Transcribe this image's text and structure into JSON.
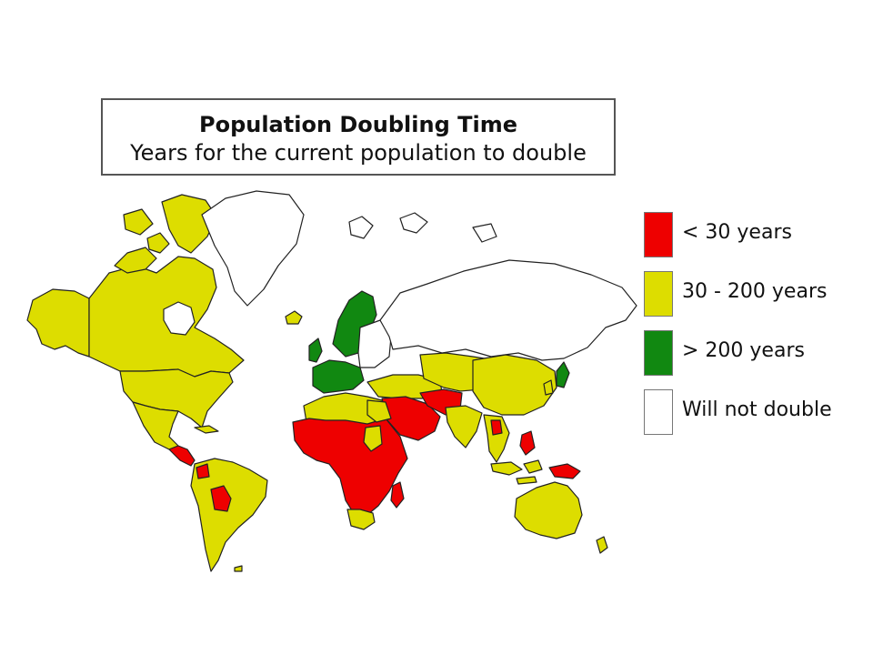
{
  "title": "Population Doubling Time",
  "subtitle": "Years for the current population to double",
  "colors": {
    "red": "#ee0000",
    "yellow": "#dddd00",
    "green": "#118811",
    "white": "#ffffff",
    "outline": "#222222"
  },
  "legend": [
    {
      "label": "< 30 years",
      "color": "#ee0000"
    },
    {
      "label": "30 - 200 years",
      "color": "#dddd00"
    },
    {
      "label": "> 200 years",
      "color": "#118811"
    },
    {
      "label": "Will not double",
      "color": "#ffffff"
    }
  ]
}
